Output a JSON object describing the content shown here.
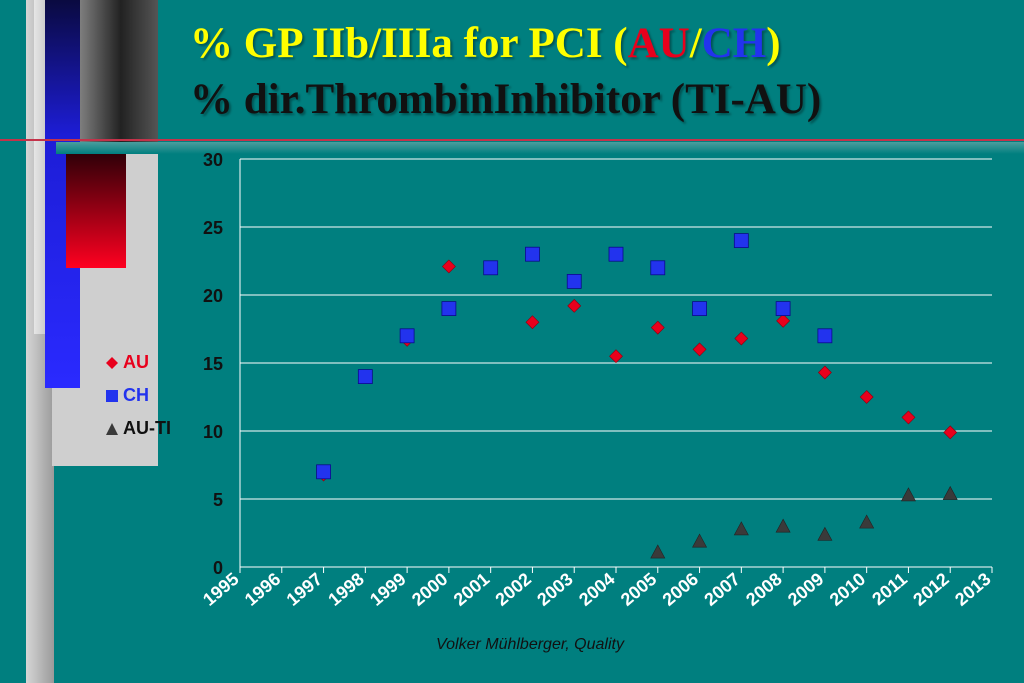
{
  "slide": {
    "title_line1_prefix": "%  GP IIb/IIIa for PCI (",
    "title_line1_au": "AU",
    "title_line1_sep": "/",
    "title_line1_ch": "CH",
    "title_line1_suffix": ")",
    "title_line2": "% dir.ThrombinInhibitor (TI-AU)",
    "footer": "Volker Mühlberger, Quality"
  },
  "colors": {
    "background": "#007f7f",
    "title": "#ffff00",
    "au": "#e8001c",
    "ch": "#2233ee",
    "au_ti": "#3a3a3a",
    "grid": "#ffffff"
  },
  "chart_data": {
    "type": "scatter",
    "title": "",
    "xlabel": "",
    "ylabel": "",
    "x": [
      1995,
      1996,
      1997,
      1998,
      1999,
      2000,
      2001,
      2002,
      2003,
      2004,
      2005,
      2006,
      2007,
      2008,
      2009,
      2010,
      2011,
      2012,
      2013
    ],
    "xlim": [
      1995,
      2013
    ],
    "ylim": [
      0,
      30
    ],
    "yticks": [
      0,
      5,
      10,
      15,
      20,
      25,
      30
    ],
    "grid": "horizontal",
    "legend_position": "left",
    "series": [
      {
        "name": "AU",
        "marker": "diamond",
        "color": "#e8001c",
        "points": [
          [
            1997,
            6.8
          ],
          [
            1999,
            16.7
          ],
          [
            2000,
            22.1
          ],
          [
            2002,
            18
          ],
          [
            2003,
            19.2
          ],
          [
            2004,
            15.5
          ],
          [
            2005,
            17.6
          ],
          [
            2006,
            16
          ],
          [
            2007,
            16.8
          ],
          [
            2008,
            18.1
          ],
          [
            2009,
            14.3
          ],
          [
            2010,
            12.5
          ],
          [
            2011,
            11
          ],
          [
            2012,
            9.9
          ]
        ]
      },
      {
        "name": "CH",
        "marker": "square",
        "color": "#2233ee",
        "points": [
          [
            1997,
            7
          ],
          [
            1998,
            14
          ],
          [
            1999,
            17
          ],
          [
            2000,
            19
          ],
          [
            2001,
            22
          ],
          [
            2002,
            23
          ],
          [
            2003,
            21
          ],
          [
            2004,
            23
          ],
          [
            2005,
            22
          ],
          [
            2006,
            19
          ],
          [
            2007,
            24
          ],
          [
            2008,
            19
          ],
          [
            2009,
            17
          ]
        ]
      },
      {
        "name": "AU-TI",
        "marker": "triangle",
        "color": "#3a3a3a",
        "points": [
          [
            2005,
            1.1
          ],
          [
            2006,
            1.9
          ],
          [
            2007,
            2.8
          ],
          [
            2008,
            3
          ],
          [
            2009,
            2.4
          ],
          [
            2010,
            3.3
          ],
          [
            2011,
            5.3
          ],
          [
            2012,
            5.4
          ]
        ]
      }
    ]
  }
}
